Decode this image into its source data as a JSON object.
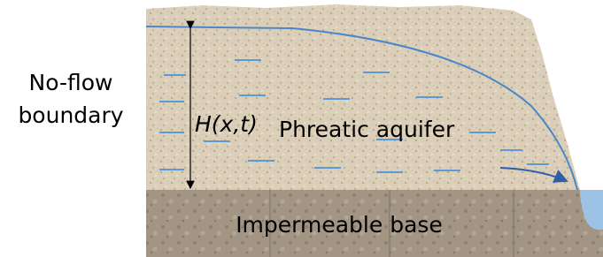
{
  "labels": {
    "no_flow": [
      "No-flow",
      "boundary"
    ],
    "head": "H(x,t)",
    "aquifer": "Phreatic aquifer",
    "base": "Impermeable base"
  }
}
